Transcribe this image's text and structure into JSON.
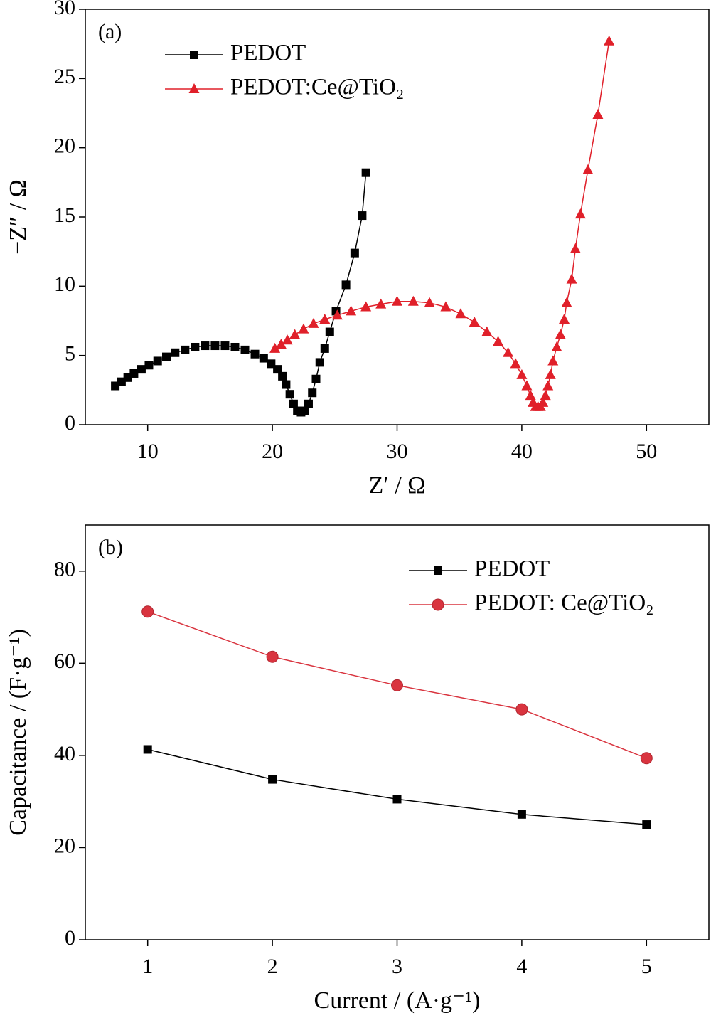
{
  "chart_data": [
    {
      "type": "line",
      "annotation": "(a)",
      "xlabel": "Z′ / Ω",
      "ylabel": "−Z″ / Ω",
      "xlim": [
        5,
        55
      ],
      "xticks": [
        10,
        20,
        30,
        40,
        50
      ],
      "ylim": [
        0,
        30
      ],
      "yticks": [
        0,
        5,
        10,
        15,
        20,
        25,
        30
      ],
      "legend": "upper left",
      "series": [
        {
          "name": "PEDOT",
          "color": "#000000",
          "marker": "square",
          "x": [
            7.4,
            7.9,
            8.4,
            8.9,
            9.5,
            10.1,
            10.8,
            11.5,
            12.2,
            13.0,
            13.8,
            14.6,
            15.4,
            16.2,
            17.0,
            17.8,
            18.6,
            19.3,
            19.9,
            20.4,
            20.8,
            21.1,
            21.4,
            21.7,
            22.0,
            22.3,
            22.6,
            22.9,
            23.2,
            23.5,
            23.8,
            24.2,
            24.6,
            25.1,
            25.9,
            26.6,
            27.2,
            27.5
          ],
          "values": [
            2.8,
            3.1,
            3.4,
            3.7,
            4.0,
            4.3,
            4.6,
            4.9,
            5.2,
            5.4,
            5.6,
            5.7,
            5.7,
            5.7,
            5.6,
            5.4,
            5.1,
            4.8,
            4.4,
            4.0,
            3.5,
            2.9,
            2.2,
            1.5,
            1.0,
            0.9,
            1.0,
            1.5,
            2.3,
            3.3,
            4.5,
            5.5,
            6.7,
            8.2,
            10.1,
            12.4,
            15.1,
            18.2
          ]
        },
        {
          "name": "PEDOT:Ce@TiO₂",
          "color": "#e0202a",
          "marker": "triangle",
          "x": [
            20.2,
            20.7,
            21.2,
            21.8,
            22.5,
            23.3,
            24.2,
            25.2,
            26.3,
            27.5,
            28.7,
            30.0,
            31.3,
            32.6,
            33.9,
            35.1,
            36.2,
            37.2,
            38.1,
            38.9,
            39.5,
            40.0,
            40.4,
            40.7,
            40.9,
            41.1,
            41.3,
            41.5,
            41.7,
            41.9,
            42.1,
            42.3,
            42.5,
            42.8,
            43.1,
            43.4,
            43.6,
            44.0,
            44.3,
            44.7,
            45.3,
            46.1,
            47.0
          ],
          "values": [
            5.5,
            5.8,
            6.1,
            6.5,
            6.9,
            7.3,
            7.6,
            7.9,
            8.2,
            8.5,
            8.7,
            8.9,
            8.9,
            8.8,
            8.5,
            8.0,
            7.4,
            6.7,
            6.0,
            5.2,
            4.4,
            3.6,
            2.8,
            2.1,
            1.6,
            1.3,
            1.3,
            1.3,
            1.6,
            2.1,
            2.8,
            3.6,
            4.6,
            5.6,
            6.5,
            7.6,
            8.8,
            10.5,
            12.7,
            15.2,
            18.4,
            22.4,
            27.7
          ]
        }
      ]
    },
    {
      "type": "line",
      "annotation": "(b)",
      "xlabel": "Current / (A·g⁻¹)",
      "ylabel": "Capacitance / (F·g⁻¹)",
      "xlim": [
        0.5,
        5.5
      ],
      "xticks": [
        1,
        2,
        3,
        4,
        5
      ],
      "ylim": [
        0,
        90
      ],
      "yticks": [
        0,
        20,
        40,
        60,
        80
      ],
      "legend": "upper right",
      "series": [
        {
          "name": "PEDOT",
          "color": "#000000",
          "marker": "square",
          "x": [
            1,
            2,
            3,
            4,
            5
          ],
          "values": [
            41.3,
            34.8,
            30.5,
            27.2,
            25.0
          ]
        },
        {
          "name": "PEDOT: Ce@TiO₂",
          "color": "#d9343f",
          "marker": "circle",
          "x": [
            1,
            2,
            3,
            4,
            5
          ],
          "values": [
            71.2,
            61.4,
            55.2,
            50.0,
            39.4
          ]
        }
      ]
    }
  ]
}
